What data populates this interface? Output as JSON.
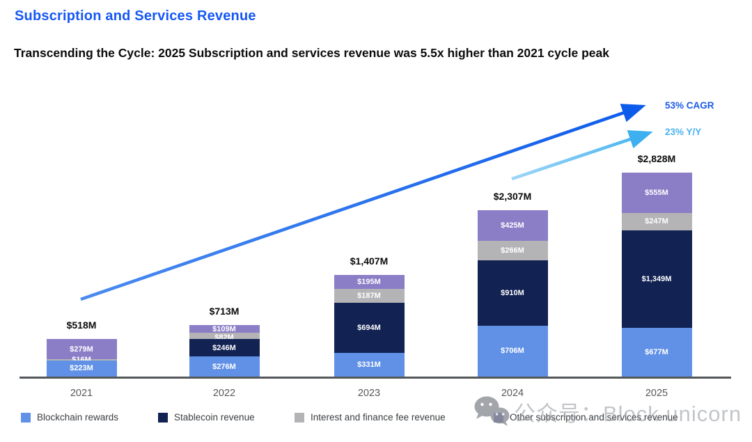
{
  "header": {
    "title": "Subscription and Services Revenue",
    "subtitle": "Transcending the Cycle: 2025 Subscription and services revenue was 5.5x higher than 2021 cycle peak"
  },
  "annotations": {
    "cagr_label": "53% CAGR",
    "yoy_label": "23% Y/Y"
  },
  "watermark": {
    "icon": "wechat-icon",
    "text": "公众号：Block unicorn"
  },
  "colors": {
    "title_blue": "#1557f5",
    "cagr_arrow": "#0d5beb",
    "cagr_text": "#1a5ae8",
    "yoy_arrow": "#3fb0ef",
    "yoy_text": "#4ab4ef",
    "axis": "#54575a",
    "blockchain_rewards": "#6191e6",
    "stablecoin_revenue": "#112253",
    "interest_finance": "#b4b3b6",
    "other_subscription": "#8b7dc6"
  },
  "chart_data": {
    "type": "bar",
    "stacked": true,
    "title": "Subscription and Services Revenue",
    "xlabel": "",
    "ylabel": "",
    "legend_position": "bottom",
    "categories": [
      "2021",
      "2022",
      "2023",
      "2024",
      "2025"
    ],
    "series": [
      {
        "name": "Blockchain rewards",
        "color": "#6191e6",
        "values": [
          223,
          276,
          331,
          706,
          677
        ],
        "labels": [
          "$223M",
          "$276M",
          "$331M",
          "$706M",
          "$677M"
        ]
      },
      {
        "name": "Stablecoin revenue",
        "color": "#112253",
        "values": [
          0,
          246,
          694,
          910,
          1349
        ],
        "labels": [
          "",
          "$246M",
          "$694M",
          "$910M",
          "$1,349M"
        ]
      },
      {
        "name": "Interest and finance fee revenue",
        "color": "#b4b3b6",
        "values": [
          16,
          82,
          187,
          266,
          247
        ],
        "labels": [
          "$16M",
          "$82M",
          "$187M",
          "$266M",
          "$247M"
        ]
      },
      {
        "name": "Other subscription and services revenue",
        "color": "#8b7dc6",
        "values": [
          279,
          109,
          195,
          425,
          555
        ],
        "labels": [
          "$279M",
          "$109M",
          "$195M",
          "$425M",
          "$555M"
        ]
      }
    ],
    "totals": [
      518,
      713,
      1407,
      2307,
      2828
    ],
    "total_labels": [
      "$518M",
      "$713M",
      "$1,407M",
      "$2,307M",
      "$2,828M"
    ],
    "trend_annotations": [
      {
        "label": "53% CAGR",
        "color": "#0d5beb"
      },
      {
        "label": "23% Y/Y",
        "color": "#3fb0ef"
      }
    ]
  }
}
